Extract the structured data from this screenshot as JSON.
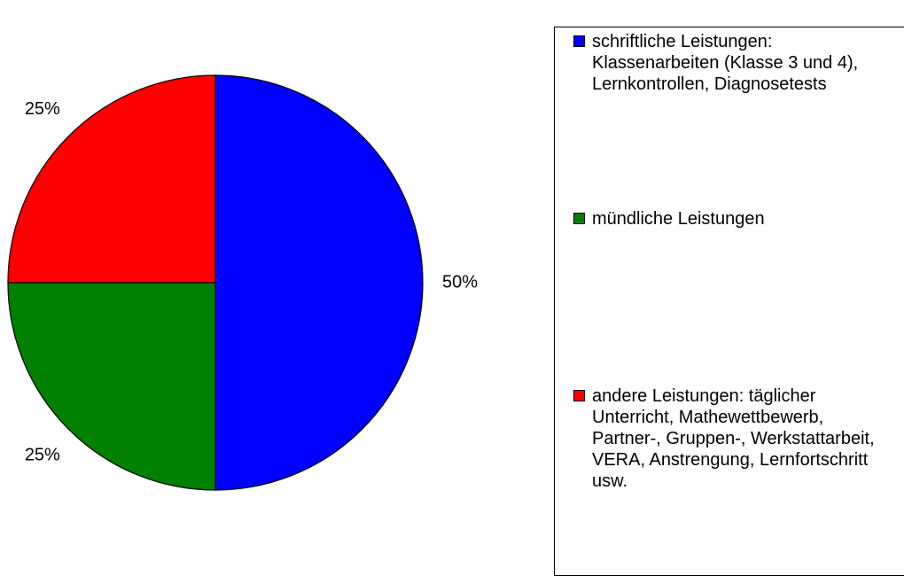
{
  "chart_data": {
    "type": "pie",
    "categories": [
      "schriftliche Leistungen: Klassenarbeiten (Klasse 3 und 4), Lernkontrollen, Diagnosetests",
      "mündliche Leistungen",
      "andere Leistungen: täglicher Unterricht, Mathewettbewerb, Partner-, Gruppen-, Werkstattarbeit, VERA, Anstrengung, Lernfortschritt usw."
    ],
    "values": [
      50,
      25,
      25
    ],
    "value_labels": [
      "50%",
      "25%",
      "25%"
    ],
    "colors": [
      "#0000ff",
      "#008000",
      "#ff0000"
    ],
    "legend": "right"
  }
}
